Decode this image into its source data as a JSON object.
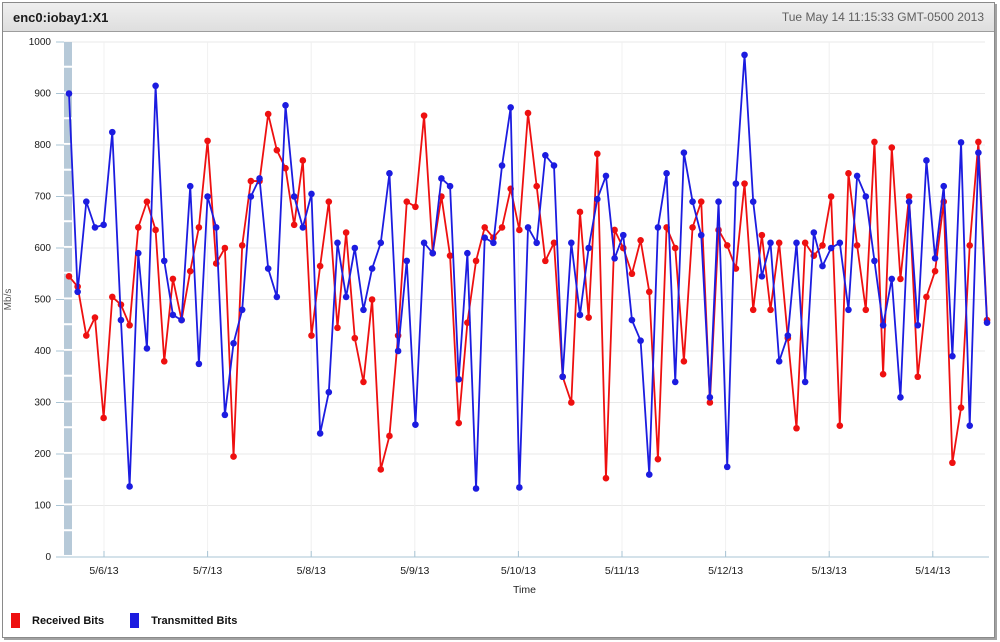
{
  "window": {
    "title": "enc0:iobay1:X1",
    "timestamp": "Tue May 14 11:15:33 GMT-0500 2013"
  },
  "legend": {
    "items": [
      {
        "label": "Received Bits",
        "color": "#ee1010"
      },
      {
        "label": "Transmitted Bits",
        "color": "#1c1ce0"
      }
    ]
  },
  "colors": {
    "received": "#ee1010",
    "transmitted": "#1c1ce0",
    "axis": "#a9c4d4",
    "grid_h": "#e8e8e8",
    "grid_v": "#f0f0f0",
    "band": "#b6c9d8",
    "tick_text": "#1a1a1a"
  },
  "chart_data": {
    "type": "line",
    "title": "enc0:iobay1:X1",
    "xlabel": "Time",
    "ylabel": "Mb/s",
    "ylim": [
      0,
      1000
    ],
    "y_ticks": [
      0,
      100,
      200,
      300,
      400,
      500,
      600,
      700,
      800,
      900,
      1000
    ],
    "x_tick_labels": [
      "5/6/13",
      "5/7/13",
      "5/8/13",
      "5/9/13",
      "5/10/13",
      "5/11/13",
      "5/12/13",
      "5/13/13",
      "5/14/13"
    ],
    "x_start_day": -0.338,
    "x_step_day": 0.0836,
    "grid": true,
    "legend_position": "bottom-left",
    "marker": "circle",
    "series": [
      {
        "name": "Received Bits",
        "color": "#ee1010",
        "values": [
          545,
          525,
          430,
          465,
          270,
          505,
          490,
          450,
          640,
          690,
          635,
          380,
          540,
          460,
          555,
          640,
          808,
          570,
          600,
          195,
          605,
          730,
          730,
          860,
          790,
          755,
          645,
          770,
          430,
          565,
          690,
          445,
          630,
          425,
          340,
          500,
          170,
          235,
          430,
          690,
          680,
          857,
          590,
          700,
          585,
          260,
          455,
          575,
          640,
          620,
          640,
          715,
          635,
          862,
          720,
          575,
          610,
          350,
          300,
          670,
          465,
          783,
          153,
          635,
          600,
          550,
          615,
          515,
          190,
          640,
          600,
          380,
          640,
          690,
          300,
          635,
          605,
          560,
          725,
          480,
          625,
          480,
          610,
          425,
          250,
          610,
          585,
          605,
          700,
          255,
          745,
          605,
          480,
          806,
          355,
          795,
          540,
          700,
          350,
          505,
          555,
          690,
          183,
          290,
          605,
          806,
          460
        ]
      },
      {
        "name": "Transmitted Bits",
        "color": "#1c1ce0",
        "values": [
          900,
          515,
          690,
          640,
          645,
          825,
          460,
          137,
          590,
          405,
          915,
          575,
          470,
          460,
          720,
          375,
          700,
          640,
          276,
          415,
          480,
          700,
          735,
          560,
          505,
          877,
          700,
          640,
          705,
          240,
          320,
          610,
          505,
          600,
          480,
          560,
          610,
          745,
          400,
          575,
          257,
          610,
          590,
          735,
          720,
          345,
          590,
          133,
          620,
          610,
          760,
          873,
          135,
          640,
          610,
          780,
          760,
          350,
          610,
          470,
          600,
          695,
          740,
          580,
          625,
          460,
          420,
          160,
          640,
          745,
          340,
          785,
          690,
          625,
          310,
          690,
          175,
          725,
          975,
          690,
          545,
          610,
          380,
          430,
          610,
          340,
          630,
          565,
          600,
          610,
          480,
          740,
          700,
          575,
          450,
          540,
          310,
          690,
          450,
          770,
          580,
          720,
          390,
          805,
          255,
          785,
          455
        ]
      }
    ]
  }
}
